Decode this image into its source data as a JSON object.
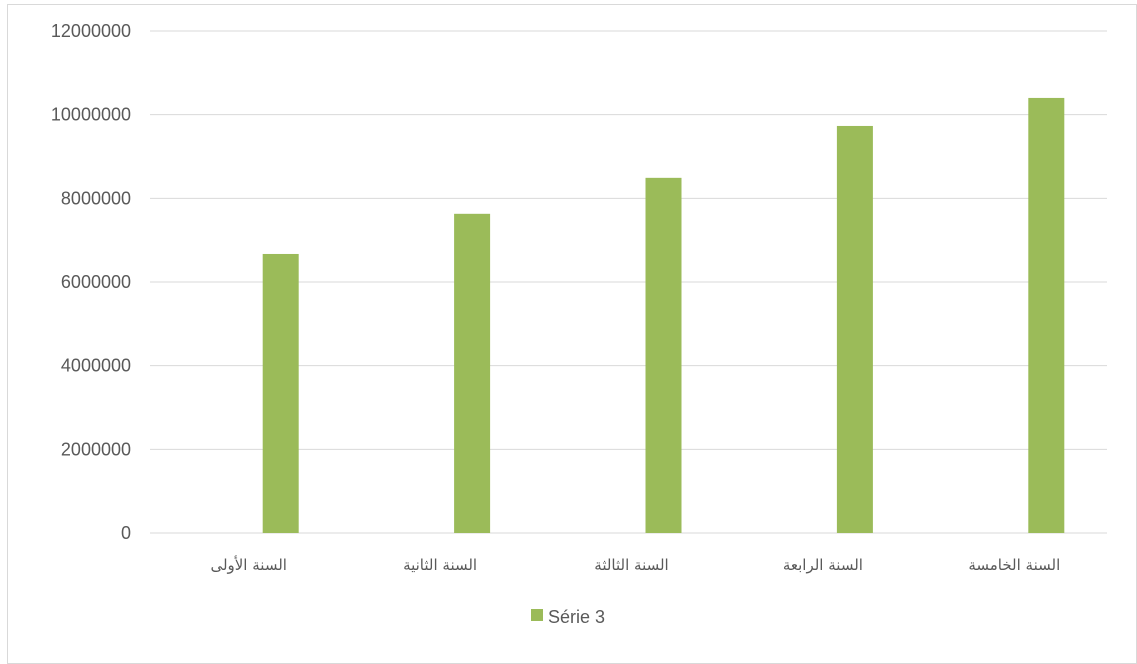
{
  "chart_data": {
    "type": "bar",
    "categories": [
      "السنة الأولى",
      "السنة الثانية",
      "السنة الثالثة",
      "السنة الرابعة",
      "السنة الخامسة"
    ],
    "series": [
      {
        "name": "Série 3",
        "values": [
          6670000,
          7630000,
          8490000,
          9730000,
          10400000
        ]
      }
    ],
    "y_ticks": [
      "0",
      "2000000",
      "4000000",
      "6000000",
      "8000000",
      "10000000",
      "12000000"
    ],
    "ylim": [
      0,
      12000000
    ],
    "grid": true,
    "legend_position": "bottom",
    "colors": {
      "series": "#9bbb59",
      "grid": "#d9d9d9",
      "text": "#595959"
    }
  }
}
